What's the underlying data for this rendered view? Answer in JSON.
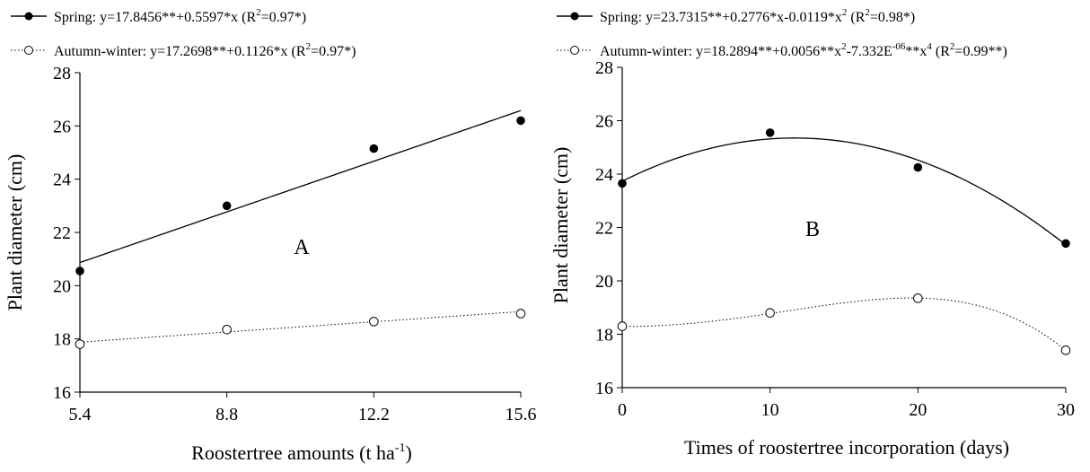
{
  "chart_data": [
    {
      "type": "scatter",
      "panel_label": "A",
      "xlabel": "Roostertree amounts (t ha",
      "xlabel_sup": "-1",
      "xlabel_end": ")",
      "ylabel": "Plant diameter (cm)",
      "xlim": [
        5.4,
        15.6
      ],
      "ylim": [
        16,
        28
      ],
      "x_ticks": [
        "5.4",
        "8.8",
        "12.2",
        "15.6"
      ],
      "y_ticks": [
        "16",
        "18",
        "20",
        "22",
        "24",
        "26",
        "28"
      ],
      "series": [
        {
          "name": "Spring",
          "marker": "filled",
          "line": "solid",
          "x": [
            5.4,
            8.8,
            12.2,
            15.6
          ],
          "y": [
            20.55,
            23.0,
            25.15,
            26.2
          ],
          "fit": {
            "type": "linear",
            "a": 17.8456,
            "b": 0.5597
          },
          "equation": {
            "t1": "Spring: y=17.8456**+0.5597*x (R",
            "s1": "2",
            "t2": "=0.97*)"
          }
        },
        {
          "name": "Autumn-winter",
          "marker": "open",
          "line": "dotted",
          "x": [
            5.4,
            8.8,
            12.2,
            15.6
          ],
          "y": [
            17.8,
            18.35,
            18.65,
            18.95
          ],
          "fit": {
            "type": "linear",
            "a": 17.2698,
            "b": 0.1126
          },
          "equation": {
            "t1": "Autumn-winter: y=17.2698**+0.1126*x (R",
            "s1": "2",
            "t2": "=0.97*)"
          }
        }
      ]
    },
    {
      "type": "scatter",
      "panel_label": "B",
      "xlabel": "Times of roostertree incorporation (days)",
      "ylabel": "Plant diameter (cm)",
      "xlim": [
        0,
        30
      ],
      "ylim": [
        16,
        28
      ],
      "x_ticks": [
        "0",
        "10",
        "20",
        "30"
      ],
      "y_ticks": [
        "16",
        "18",
        "20",
        "22",
        "24",
        "26",
        "28"
      ],
      "series": [
        {
          "name": "Spring",
          "marker": "filled",
          "line": "solid",
          "x": [
            0,
            10,
            20,
            30
          ],
          "y": [
            23.65,
            25.55,
            24.25,
            21.4
          ],
          "fit": {
            "type": "quadratic",
            "a": 23.7315,
            "b": 0.2776,
            "c": -0.0119
          },
          "equation": {
            "t1": "Spring: y=23.7315**+0.2776*x-0.0119*x",
            "s1": "2",
            "t2": " (R",
            "s2": "2",
            "t3": "=0.98*)"
          }
        },
        {
          "name": "Autumn-winter",
          "marker": "open",
          "line": "dotted",
          "x": [
            0,
            10,
            20,
            30
          ],
          "y": [
            18.3,
            18.8,
            19.35,
            17.4
          ],
          "fit": {
            "type": "quartic",
            "a": 18.2894,
            "b2": 0.0056,
            "b4": -7.332e-06
          },
          "equation": {
            "t1": "Autumn-winter: y=18.2894**+0.0056**x",
            "s1": "2",
            "t2": "-7.332E",
            "s2": "-06",
            "t3": "**x",
            "s3": "4",
            "t4": " (R",
            "s4": "2",
            "t5": "=0.99**)"
          }
        }
      ]
    }
  ]
}
